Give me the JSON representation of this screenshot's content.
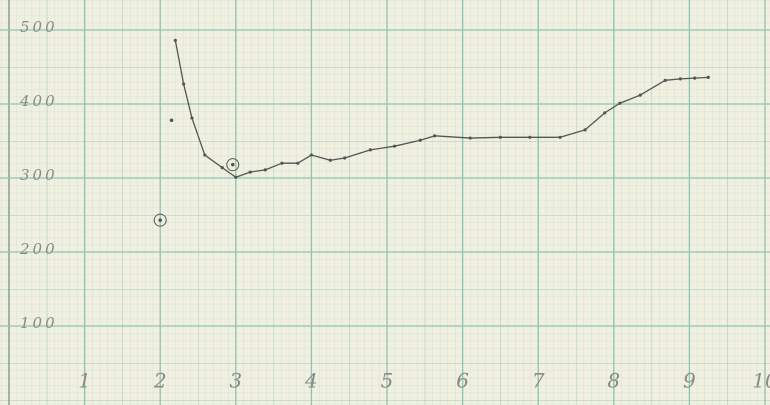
{
  "chart_data": {
    "type": "line",
    "x": [
      2.2,
      2.31,
      2.42,
      2.59,
      2.82,
      3.0,
      3.19,
      3.39,
      3.61,
      3.82,
      4.0,
      4.25,
      4.44,
      4.78,
      5.1,
      5.44,
      5.63,
      6.1,
      6.5,
      6.89,
      7.29,
      7.62,
      7.88,
      8.08,
      8.35,
      8.68,
      8.88,
      9.07,
      9.25
    ],
    "values": [
      486,
      427,
      381,
      331,
      314,
      301,
      308,
      311,
      320,
      320,
      331,
      324,
      327,
      338,
      343,
      351,
      357,
      354,
      355,
      355,
      355,
      365,
      388,
      401,
      412,
      432,
      434,
      435,
      436
    ],
    "color": "#555555",
    "marked_points": {
      "x": [
        2.0,
        2.96,
        2.15
      ],
      "values": [
        243,
        318,
        378
      ]
    },
    "xlim": [
      0,
      10
    ],
    "ylim": [
      0,
      540
    ],
    "xticks": [
      1,
      2,
      3,
      4,
      5,
      6,
      7,
      8,
      9,
      10
    ],
    "yticks": [
      100,
      200,
      300,
      400,
      500
    ],
    "grid": true
  }
}
